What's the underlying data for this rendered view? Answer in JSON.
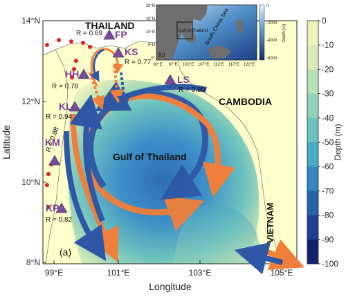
{
  "map": {
    "panel_label": "(a)",
    "xlabel": "Longitude",
    "ylabel": "Latitude",
    "x_ticks": [
      "99°E",
      "101°E",
      "103°E",
      "105°E"
    ],
    "y_ticks": [
      "14°N",
      "12°N",
      "10°N",
      "8°N"
    ],
    "region_labels": {
      "thailand": "THAILAND",
      "cambodia": "CAMBODIA",
      "vietnam": "VIETNAM",
      "gulf": "Gulf of Thailand"
    },
    "stations": [
      {
        "code": "FP",
        "r": "R = 0.69"
      },
      {
        "code": "KS",
        "r": "R = 0.77"
      },
      {
        "code": "HH",
        "r": "R = 0.78"
      },
      {
        "code": "LS",
        "r": "R = 0.80"
      },
      {
        "code": "KL",
        "r": "R = 0.94"
      },
      {
        "code": "KM",
        "r": "R = 0.88"
      },
      {
        "code": "KP",
        "r": "R = 0.82"
      }
    ],
    "colors": {
      "orange_current": "#f07f3c",
      "blue_current": "#2e58a6",
      "station_marker": "#7a4a9e",
      "station_label": "#7a3f9a",
      "coast_dots": "#e02020",
      "land": "#ffffff"
    }
  },
  "colorbar": {
    "title": "Depth (m)",
    "ticks": [
      "0",
      "-10",
      "-20",
      "-30",
      "-40",
      "-50",
      "-60",
      "-70",
      "-80",
      "-90",
      "-100"
    ],
    "colors": [
      "#ffffcc",
      "#eef3bc",
      "#d9edb8",
      "#b9e0b6",
      "#92d2b9",
      "#6cc2bf",
      "#4aa9c4",
      "#3386bf",
      "#2763aa",
      "#1f3f93",
      "#13206e"
    ]
  },
  "inset": {
    "panel_label": "(b)",
    "x_ticks": [
      "92°E",
      "97°E",
      "102°E",
      "107°E",
      "112°E",
      "117°E",
      "122°E"
    ],
    "y_ticks": [
      "20°N",
      "15°N",
      "10°N",
      "5°N",
      "0°"
    ],
    "gulf_label": "Gulf of Thailand",
    "sea_label": "South China Sea",
    "cbar_title": "Depth (m)",
    "cbar_ticks": [
      "0",
      "-2000",
      "-4000",
      "-6000"
    ]
  }
}
